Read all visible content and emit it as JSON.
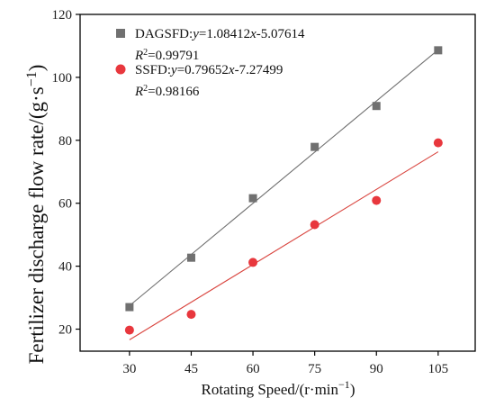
{
  "chart_data": {
    "type": "scatter",
    "xlabel": "Rotating Speed/(r·min⁻¹)",
    "ylabel": "Fertilizer discharge flow rate/(g·s⁻¹)",
    "xlim": [
      18,
      114
    ],
    "ylim": [
      13,
      120
    ],
    "x_ticks": [
      30,
      45,
      60,
      75,
      90,
      105
    ],
    "y_ticks": [
      20,
      40,
      60,
      80,
      100,
      120
    ],
    "grid": false,
    "legend_position": "top-left",
    "series": [
      {
        "name": "DAGSFD",
        "marker": "square",
        "color": "#707070",
        "line_color": "#707070",
        "x": [
          30,
          45,
          60,
          75,
          90,
          105
        ],
        "y": [
          27.0,
          42.7,
          61.6,
          77.9,
          90.9,
          108.6
        ],
        "fit": {
          "slope": 1.08412,
          "intercept": -5.07614
        },
        "equation": ":y=1.08412x-5.07614",
        "r2": "=0.99791"
      },
      {
        "name": "SSFD",
        "marker": "circle",
        "color": "#e8373d",
        "line_color": "#d9453f",
        "x": [
          30,
          45,
          60,
          75,
          90,
          105
        ],
        "y": [
          19.7,
          24.7,
          41.2,
          53.2,
          60.9,
          79.2
        ],
        "fit": {
          "slope": 0.79652,
          "intercept": -7.27499
        },
        "equation": ":y=0.79652x-7.27499",
        "r2": "=0.98166"
      }
    ]
  }
}
